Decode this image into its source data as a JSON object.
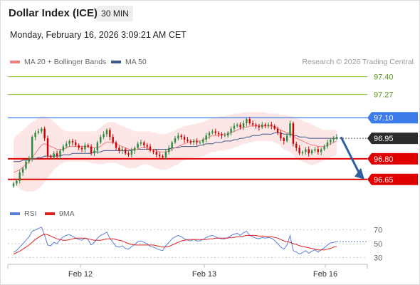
{
  "header": {
    "title": "Dollar Index (ICE)",
    "timeframe": "30 MIN",
    "datetime": "Monday, February 16, 2026 3:09:21 AM CET"
  },
  "legend": {
    "ma20_label": "MA 20 + Bollinger Bands",
    "ma50_label": "MA 50",
    "credit": "Research © 2026 Trading Central",
    "rsi_label": "RSI",
    "rsi_ma_label": "9MA"
  },
  "colors": {
    "candle_up": "#2b8a3e",
    "candle_down": "#d00000",
    "ma20": "#f08080",
    "ma50": "#3d5a8a",
    "bollinger_fill": "#fde6e6",
    "resistance_green": "#8dc63f",
    "level_blue": "#3d7be8",
    "support_red": "#e00000",
    "current_price_bg": "#2b2b2b",
    "arrow": "#2f5f9e",
    "rsi_line": "#5b7fd6",
    "rsi_ma_line": "#e02020"
  },
  "chart_data": [
    {
      "type": "candlestick",
      "x_ticks": [
        "Feb 12",
        "Feb 13",
        "Feb 16"
      ],
      "y_range": [
        96.55,
        97.46
      ],
      "levels": [
        {
          "value": 97.4,
          "label": "97.40",
          "kind": "resistance"
        },
        {
          "value": 97.27,
          "label": "97.27",
          "kind": "resistance"
        },
        {
          "value": 97.1,
          "label": "97.10",
          "kind": "pivot"
        },
        {
          "value": 96.95,
          "label": "96.95",
          "kind": "current"
        },
        {
          "value": 96.8,
          "label": "96.80",
          "kind": "support"
        },
        {
          "value": 96.65,
          "label": "96.65",
          "kind": "support"
        }
      ],
      "forecast_arrow": {
        "from": 96.96,
        "to": 96.65
      },
      "close": [
        96.62,
        96.64,
        96.7,
        96.73,
        96.78,
        96.8,
        96.96,
        96.99,
        97.0,
        97.02,
        96.95,
        96.82,
        96.81,
        96.84,
        96.82,
        96.86,
        96.89,
        96.91,
        96.93,
        96.92,
        96.9,
        96.88,
        96.87,
        96.9,
        96.89,
        96.84,
        96.86,
        96.92,
        96.96,
        96.98,
        97.01,
        96.96,
        96.92,
        96.88,
        96.86,
        96.87,
        96.84,
        96.83,
        96.86,
        96.88,
        96.91,
        96.92,
        96.9,
        96.89,
        96.86,
        96.85,
        96.83,
        96.82,
        96.81,
        96.85,
        96.88,
        96.92,
        96.95,
        96.97,
        96.96,
        96.94,
        96.93,
        96.92,
        96.93,
        96.92,
        96.92,
        96.94,
        96.97,
        96.99,
        97.0,
        96.99,
        96.98,
        96.97,
        96.97,
        96.99,
        97.02,
        97.04,
        97.05,
        97.03,
        97.06,
        97.09,
        97.06,
        97.05,
        97.04,
        97.03,
        97.05,
        97.04,
        97.05,
        97.04,
        97.02,
        96.99,
        96.95,
        96.93,
        96.97,
        97.06,
        96.91,
        96.88,
        96.84,
        96.85,
        96.87,
        96.84,
        96.86,
        96.87,
        96.85,
        96.87,
        96.89,
        96.92,
        96.94,
        96.95,
        96.96
      ],
      "ma20": [
        96.7,
        96.71,
        96.72,
        96.74,
        96.76,
        96.78,
        96.81,
        96.84,
        96.87,
        96.9,
        96.91,
        96.9,
        96.89,
        96.88,
        96.87,
        96.87,
        96.87,
        96.88,
        96.89,
        96.89,
        96.89,
        96.89,
        96.89,
        96.89,
        96.89,
        96.88,
        96.88,
        96.88,
        96.89,
        96.91,
        96.92,
        96.92,
        96.92,
        96.91,
        96.9,
        96.89,
        96.88,
        96.87,
        96.87,
        96.87,
        96.87,
        96.88,
        96.88,
        96.88,
        96.87,
        96.87,
        96.86,
        96.85,
        96.85,
        96.85,
        96.86,
        96.87,
        96.88,
        96.89,
        96.9,
        96.91,
        96.92,
        96.92,
        96.93,
        96.93,
        96.93,
        96.94,
        96.95,
        96.96,
        96.97,
        96.97,
        96.97,
        96.98,
        96.98,
        96.98,
        96.99,
        97.0,
        97.01,
        97.02,
        97.03,
        97.03,
        97.04,
        97.04,
        97.04,
        97.04,
        97.04,
        97.04,
        97.04,
        97.04,
        97.03,
        97.02,
        97.01,
        97.0,
        96.99,
        96.99,
        96.97,
        96.95,
        96.94,
        96.93,
        96.92,
        96.91,
        96.9,
        96.9,
        96.89,
        96.89,
        96.89,
        96.9,
        96.91,
        96.92,
        96.93
      ],
      "ma50": [
        96.78,
        96.78,
        96.78,
        96.79,
        96.79,
        96.79,
        96.8,
        96.8,
        96.81,
        96.81,
        96.82,
        96.82,
        96.82,
        96.82,
        96.82,
        96.82,
        96.83,
        96.83,
        96.83,
        96.84,
        96.84,
        96.84,
        96.84,
        96.84,
        96.84,
        96.84,
        96.85,
        96.85,
        96.85,
        96.86,
        96.86,
        96.86,
        96.86,
        96.86,
        96.86,
        96.86,
        96.86,
        96.86,
        96.86,
        96.87,
        96.87,
        96.87,
        96.87,
        96.87,
        96.87,
        96.87,
        96.87,
        96.87,
        96.87,
        96.87,
        96.87,
        96.88,
        96.88,
        96.88,
        96.89,
        96.89,
        96.89,
        96.89,
        96.89,
        96.89,
        96.9,
        96.9,
        96.91,
        96.91,
        96.91,
        96.92,
        96.92,
        96.92,
        96.93,
        96.93,
        96.93,
        96.94,
        96.94,
        96.95,
        96.95,
        96.96,
        96.96,
        96.97,
        96.97,
        96.97,
        96.98,
        96.98,
        96.98,
        96.98,
        96.99,
        96.99,
        96.99,
        96.98,
        96.98,
        96.98,
        96.97,
        96.97,
        96.96,
        96.96,
        96.96,
        96.95,
        96.95,
        96.95,
        96.95,
        96.95,
        96.95,
        96.95,
        96.95,
        96.95,
        96.95
      ],
      "bollinger_upper": [
        96.95,
        96.97,
        96.99,
        97.01,
        97.03,
        97.05,
        97.07,
        97.08,
        97.1,
        97.11,
        97.11,
        97.1,
        97.09,
        97.07,
        97.05,
        97.03,
        97.01,
        97.0,
        97.0,
        97.0,
        97.0,
        97.0,
        97.0,
        97.0,
        97.0,
        97.0,
        97.0,
        97.01,
        97.03,
        97.05,
        97.06,
        97.07,
        97.07,
        97.06,
        97.05,
        97.04,
        97.03,
        97.02,
        97.01,
        97.0,
        97.0,
        97.0,
        97.0,
        97.0,
        97.0,
        96.99,
        96.99,
        96.98,
        96.98,
        96.98,
        96.99,
        97.0,
        97.01,
        97.02,
        97.03,
        97.04,
        97.04,
        97.05,
        97.05,
        97.06,
        97.06,
        97.07,
        97.08,
        97.09,
        97.1,
        97.1,
        97.11,
        97.11,
        97.11,
        97.12,
        97.12,
        97.13,
        97.13,
        97.13,
        97.14,
        97.14,
        97.14,
        97.14,
        97.14,
        97.14,
        97.14,
        97.14,
        97.13,
        97.13,
        97.13,
        97.13,
        97.12,
        97.12,
        97.12,
        97.11,
        97.11,
        97.1,
        97.09,
        97.08,
        97.07,
        97.06,
        97.05,
        97.04,
        97.03,
        97.02,
        97.01,
        97.01,
        97.01,
        97.01,
        97.01
      ],
      "bollinger_lower": [
        96.62,
        96.6,
        96.58,
        96.57,
        96.56,
        96.56,
        96.56,
        96.57,
        96.58,
        96.6,
        96.63,
        96.66,
        96.69,
        96.72,
        96.74,
        96.76,
        96.77,
        96.78,
        96.78,
        96.78,
        96.78,
        96.78,
        96.78,
        96.78,
        96.78,
        96.77,
        96.77,
        96.76,
        96.76,
        96.76,
        96.77,
        96.77,
        96.77,
        96.77,
        96.76,
        96.75,
        96.74,
        96.73,
        96.73,
        96.73,
        96.74,
        96.75,
        96.76,
        96.76,
        96.75,
        96.74,
        96.73,
        96.72,
        96.72,
        96.72,
        96.73,
        96.74,
        96.75,
        96.76,
        96.78,
        96.79,
        96.8,
        96.8,
        96.81,
        96.81,
        96.81,
        96.82,
        96.83,
        96.84,
        96.85,
        96.85,
        96.86,
        96.86,
        96.86,
        96.87,
        96.87,
        96.88,
        96.89,
        96.9,
        96.91,
        96.91,
        96.92,
        96.92,
        96.93,
        96.93,
        96.93,
        96.93,
        96.93,
        96.93,
        96.92,
        96.91,
        96.89,
        96.87,
        96.86,
        96.85,
        96.83,
        96.8,
        96.79,
        96.78,
        96.77,
        96.76,
        96.75,
        96.76,
        96.77,
        96.78,
        96.79,
        96.8,
        96.81,
        96.82,
        96.83
      ]
    },
    {
      "type": "line",
      "name": "RSI",
      "y_ticks": [
        70,
        50,
        30
      ],
      "y_range": [
        20,
        80
      ],
      "series": [
        {
          "name": "RSI",
          "values": [
            38,
            40,
            45,
            50,
            55,
            60,
            68,
            70,
            72,
            74,
            62,
            48,
            47,
            52,
            50,
            56,
            60,
            62,
            63,
            61,
            58,
            56,
            55,
            58,
            56,
            48,
            52,
            58,
            62,
            64,
            67,
            58,
            52,
            46,
            45,
            47,
            43,
            42,
            46,
            49,
            53,
            54,
            52,
            50,
            46,
            45,
            43,
            41,
            40,
            47,
            52,
            57,
            60,
            62,
            60,
            57,
            55,
            54,
            56,
            54,
            54,
            56,
            59,
            61,
            62,
            60,
            58,
            57,
            57,
            59,
            62,
            64,
            65,
            62,
            66,
            68,
            62,
            60,
            58,
            57,
            59,
            58,
            59,
            58,
            55,
            50,
            45,
            42,
            48,
            62,
            40,
            38,
            35,
            37,
            40,
            36,
            39,
            41,
            38,
            41,
            44,
            48,
            51,
            52,
            53
          ]
        },
        {
          "name": "9MA",
          "values": [
            35,
            37,
            39,
            42,
            45,
            48,
            52,
            56,
            59,
            62,
            64,
            63,
            61,
            59,
            57,
            56,
            55,
            55,
            56,
            57,
            58,
            58,
            58,
            58,
            57,
            56,
            55,
            55,
            55,
            56,
            57,
            57,
            57,
            56,
            55,
            54,
            52,
            50,
            49,
            48,
            48,
            48,
            48,
            48,
            48,
            48,
            47,
            46,
            45,
            45,
            46,
            48,
            50,
            52,
            54,
            55,
            56,
            56,
            56,
            56,
            56,
            56,
            56,
            57,
            57,
            58,
            58,
            58,
            58,
            58,
            59,
            59,
            60,
            60,
            61,
            62,
            62,
            62,
            62,
            61,
            61,
            61,
            60,
            60,
            59,
            58,
            56,
            54,
            53,
            52,
            50,
            49,
            47,
            46,
            45,
            44,
            43,
            42,
            41,
            41,
            41,
            42,
            43,
            45,
            46
          ]
        }
      ]
    }
  ]
}
